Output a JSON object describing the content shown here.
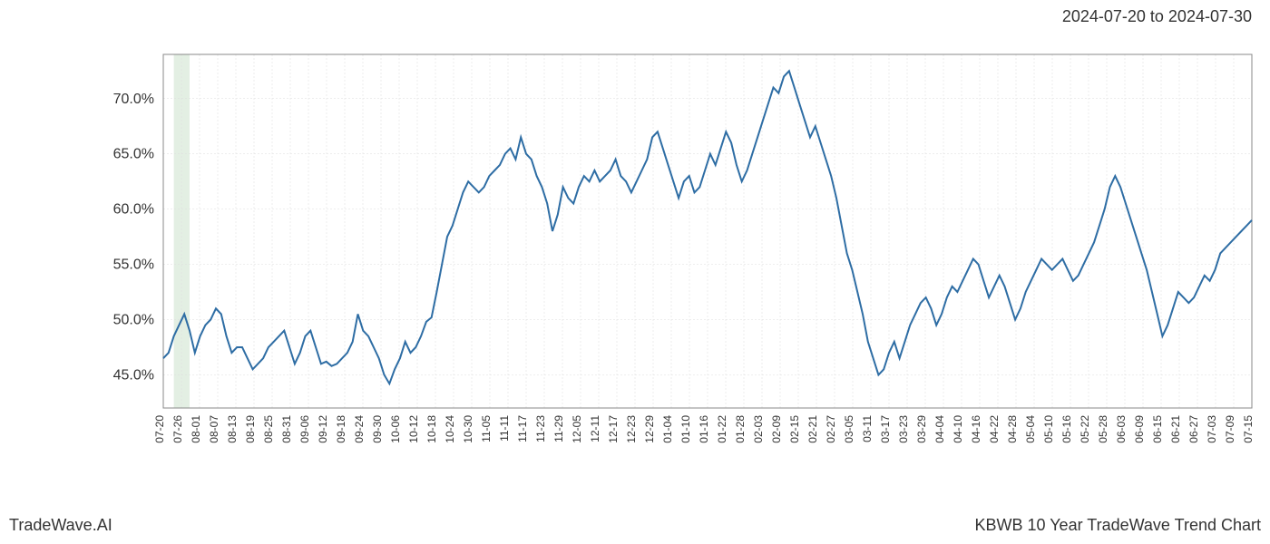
{
  "header": {
    "date_range": "2024-07-20 to 2024-07-30"
  },
  "footer": {
    "left": "TradeWave.AI",
    "right": "KBWB 10 Year TradeWave Trend Chart"
  },
  "chart": {
    "type": "line",
    "line_color": "#2e6da4",
    "line_width": 2,
    "background_color": "#ffffff",
    "grid_color": "#dddddd",
    "border_color": "#888888",
    "highlight_band_color": "#c8e0c8",
    "highlight_band_opacity": 0.5,
    "highlight_start_index": 2,
    "highlight_end_index": 5,
    "ylim": [
      42,
      74
    ],
    "y_ticks": [
      45.0,
      50.0,
      55.0,
      60.0,
      65.0,
      70.0
    ],
    "y_tick_labels": [
      "45.0%",
      "50.0%",
      "55.0%",
      "60.0%",
      "65.0%",
      "70.0%"
    ],
    "y_label_fontsize": 16,
    "x_label_fontsize": 12,
    "x_labels": [
      "07-20",
      "07-26",
      "08-01",
      "08-07",
      "08-13",
      "08-19",
      "08-25",
      "08-31",
      "09-06",
      "09-12",
      "09-18",
      "09-24",
      "09-30",
      "10-06",
      "10-12",
      "10-18",
      "10-24",
      "10-30",
      "11-05",
      "11-11",
      "11-17",
      "11-23",
      "11-29",
      "12-05",
      "12-11",
      "12-17",
      "12-23",
      "12-29",
      "01-04",
      "01-10",
      "01-16",
      "01-22",
      "01-28",
      "02-03",
      "02-09",
      "02-15",
      "02-21",
      "02-27",
      "03-05",
      "03-11",
      "03-17",
      "03-23",
      "03-29",
      "04-04",
      "04-10",
      "04-16",
      "04-22",
      "04-28",
      "05-04",
      "05-10",
      "05-16",
      "05-22",
      "05-28",
      "06-03",
      "06-09",
      "06-15",
      "06-21",
      "06-27",
      "07-03",
      "07-09",
      "07-15"
    ],
    "values": [
      46.5,
      47.0,
      48.5,
      49.5,
      50.5,
      49.0,
      47.0,
      48.5,
      49.5,
      50.0,
      51.0,
      50.5,
      48.5,
      47.0,
      47.5,
      47.5,
      46.5,
      45.5,
      46.0,
      46.5,
      47.5,
      48.0,
      48.5,
      49.0,
      47.5,
      46.0,
      47.0,
      48.5,
      49.0,
      47.5,
      46.0,
      46.2,
      45.8,
      46.0,
      46.5,
      47.0,
      48.0,
      50.5,
      49.0,
      48.5,
      47.5,
      46.5,
      45.0,
      44.2,
      45.5,
      46.5,
      48.0,
      47.0,
      47.5,
      48.5,
      49.8,
      50.2,
      52.5,
      55.0,
      57.5,
      58.5,
      60.0,
      61.5,
      62.5,
      62.0,
      61.5,
      62.0,
      63.0,
      63.5,
      64.0,
      65.0,
      65.5,
      64.5,
      66.5,
      65.0,
      64.5,
      63.0,
      62.0,
      60.5,
      58.0,
      59.5,
      62.0,
      61.0,
      60.5,
      62.0,
      63.0,
      62.5,
      63.5,
      62.5,
      63.0,
      63.5,
      64.5,
      63.0,
      62.5,
      61.5,
      62.5,
      63.5,
      64.5,
      66.5,
      67.0,
      65.5,
      64.0,
      62.5,
      61.0,
      62.5,
      63.0,
      61.5,
      62.0,
      63.5,
      65.0,
      64.0,
      65.5,
      67.0,
      66.0,
      64.0,
      62.5,
      63.5,
      65.0,
      66.5,
      68.0,
      69.5,
      71.0,
      70.5,
      72.0,
      72.5,
      71.0,
      69.5,
      68.0,
      66.5,
      67.5,
      66.0,
      64.5,
      63.0,
      61.0,
      58.5,
      56.0,
      54.5,
      52.5,
      50.5,
      48.0,
      46.5,
      45.0,
      45.5,
      47.0,
      48.0,
      46.5,
      48.0,
      49.5,
      50.5,
      51.5,
      52.0,
      51.0,
      49.5,
      50.5,
      52.0,
      53.0,
      52.5,
      53.5,
      54.5,
      55.5,
      55.0,
      53.5,
      52.0,
      53.0,
      54.0,
      53.0,
      51.5,
      50.0,
      51.0,
      52.5,
      53.5,
      54.5,
      55.5,
      55.0,
      54.5,
      55.0,
      55.5,
      54.5,
      53.5,
      54.0,
      55.0,
      56.0,
      57.0,
      58.5,
      60.0,
      62.0,
      63.0,
      62.0,
      60.5,
      59.0,
      57.5,
      56.0,
      54.5,
      52.5,
      50.5,
      48.5,
      49.5,
      51.0,
      52.5,
      52.0,
      51.5,
      52.0,
      53.0,
      54.0,
      53.5,
      54.5,
      56.0,
      56.5,
      57.0,
      57.5,
      58.0,
      58.5,
      59.0
    ]
  }
}
